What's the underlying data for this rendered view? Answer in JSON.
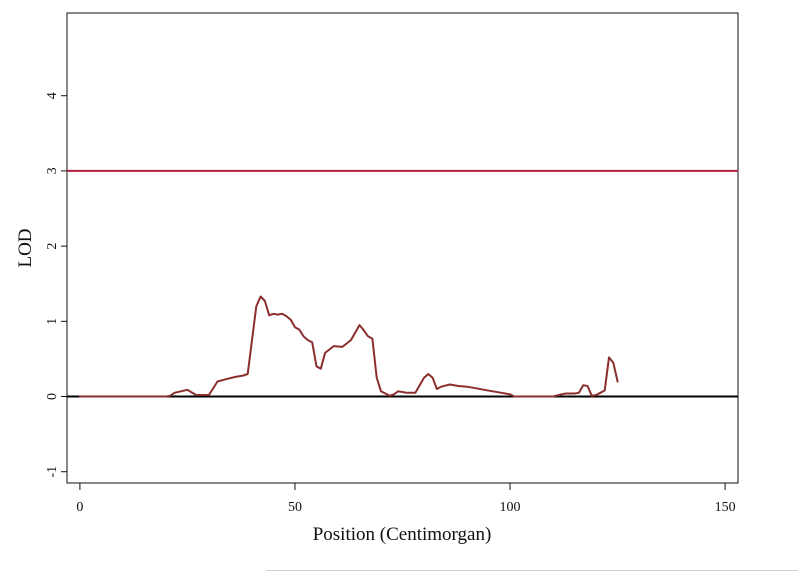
{
  "chart_data": {
    "type": "line",
    "title": "",
    "xlabel": "Position (Centimorgan)",
    "ylabel": "LOD",
    "xlim": [
      -3,
      153
    ],
    "ylim": [
      -1.15,
      5.1
    ],
    "xticks": [
      0,
      50,
      100,
      150
    ],
    "yticks": [
      -1,
      0,
      1,
      2,
      3,
      4
    ],
    "grid": false,
    "legend": "none",
    "threshold": {
      "y": 3,
      "color": "#b5203e"
    },
    "baseline": {
      "y": 0,
      "color": "#000000"
    },
    "series": [
      {
        "color": "#8b2e2e",
        "x": [
          0,
          20,
          21,
          22,
          25,
          27,
          30,
          32,
          34,
          36,
          38,
          39,
          40,
          41,
          42,
          43,
          44,
          45,
          46,
          47,
          48,
          49,
          50,
          51,
          52,
          53,
          54,
          55,
          56,
          57,
          59,
          61,
          63,
          64,
          65,
          66,
          67,
          68,
          69,
          70,
          71,
          72,
          73,
          74,
          75,
          76,
          78,
          80,
          81,
          82,
          83,
          84,
          86,
          88,
          90,
          92,
          94,
          96,
          98,
          100,
          101,
          102,
          104,
          106,
          108,
          110,
          112,
          113,
          114,
          115,
          116,
          117,
          118,
          119,
          120,
          121,
          122,
          123,
          124,
          125
        ],
        "y": [
          0,
          0,
          0.01,
          0.05,
          0.09,
          0.02,
          0.02,
          0.2,
          0.23,
          0.26,
          0.28,
          0.3,
          0.75,
          1.2,
          1.33,
          1.27,
          1.08,
          1.1,
          1.09,
          1.1,
          1.07,
          1.02,
          0.92,
          0.89,
          0.8,
          0.75,
          0.72,
          0.4,
          0.37,
          0.58,
          0.67,
          0.66,
          0.75,
          0.85,
          0.95,
          0.88,
          0.8,
          0.77,
          0.25,
          0.07,
          0.04,
          0.01,
          0.03,
          0.07,
          0.06,
          0.05,
          0.05,
          0.25,
          0.3,
          0.25,
          0.1,
          0.13,
          0.16,
          0.14,
          0.13,
          0.11,
          0.09,
          0.07,
          0.05,
          0.03,
          0,
          0,
          0,
          0,
          0,
          0,
          0.03,
          0.04,
          0.04,
          0.04,
          0.05,
          0.15,
          0.14,
          0.01,
          0.02,
          0.05,
          0.08,
          0.52,
          0.45,
          0.2
        ]
      }
    ]
  }
}
